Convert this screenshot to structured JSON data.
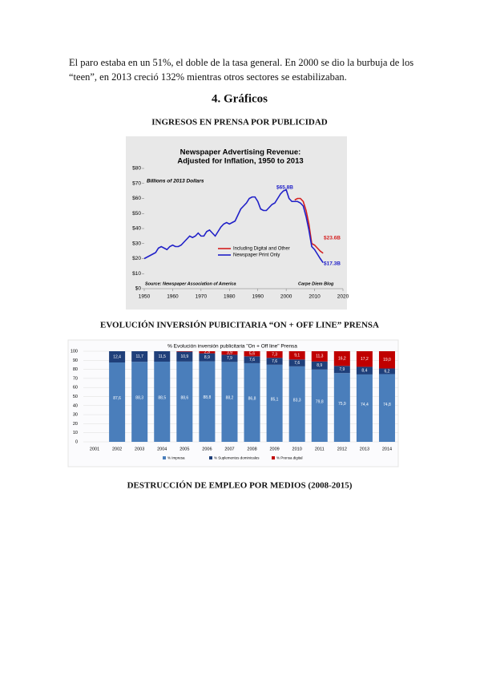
{
  "paragraph_lines": [
    "El paro estaba en un 51%, el doble de la tasa general. En 2000 se dio la burbuja de los",
    "“teen”, en 2013 creció 132% mientras otros sectores se estabilizaban."
  ],
  "heading": "4.  Gráficos",
  "figures": [
    {
      "caption": "INGRESOS EN PRENSA POR PUBLICIDAD",
      "chart": {
        "type": "line",
        "title": "Newspaper Advertising Revenue:",
        "title_line2": "Adjusted for Inflation, 1950 to 2013",
        "subtitle": "Billions of 2013 Dollars",
        "x": [
          1950,
          1951,
          1952,
          1953,
          1954,
          1955,
          1956,
          1957,
          1958,
          1959,
          1960,
          1961,
          1962,
          1963,
          1964,
          1965,
          1966,
          1967,
          1968,
          1969,
          1970,
          1971,
          1972,
          1973,
          1974,
          1975,
          1976,
          1977,
          1978,
          1979,
          1980,
          1981,
          1982,
          1983,
          1984,
          1985,
          1986,
          1987,
          1988,
          1989,
          1990,
          1991,
          1992,
          1993,
          1994,
          1995,
          1996,
          1997,
          1998,
          1999,
          2000,
          2001,
          2002,
          2003,
          2004,
          2005,
          2006,
          2007,
          2008,
          2009,
          2010,
          2011,
          2012,
          2013
        ],
        "series": [
          {
            "name": "Including Digital and Other",
            "color": "#d42020",
            "values": [
              null,
              null,
              null,
              null,
              null,
              null,
              null,
              null,
              null,
              null,
              null,
              null,
              null,
              null,
              null,
              null,
              null,
              null,
              null,
              null,
              null,
              null,
              null,
              null,
              null,
              null,
              null,
              null,
              null,
              null,
              null,
              null,
              null,
              null,
              null,
              null,
              null,
              null,
              null,
              null,
              null,
              null,
              null,
              null,
              null,
              null,
              null,
              null,
              null,
              null,
              null,
              null,
              null,
              59,
              60,
              60,
              58,
              52,
              43,
              30,
              29,
              27,
              25,
              23.6
            ]
          },
          {
            "name": "Newspaper Print Only",
            "color": "#2020c8",
            "values": [
              20,
              21,
              22,
              23,
              24,
              27,
              28,
              27,
              26,
              28,
              29,
              28,
              28,
              29,
              31,
              33,
              35,
              34,
              35,
              37,
              35,
              35,
              38,
              39,
              37,
              35,
              38,
              41,
              43,
              44,
              43,
              44,
              45,
              49,
              53,
              55,
              57,
              60,
              61,
              61,
              58,
              53,
              52,
              52,
              54,
              56,
              57,
              60,
              63,
              65,
              65.8,
              60,
              58,
              58,
              58,
              57,
              55,
              48,
              39,
              28,
              26,
              23,
              20,
              17.3
            ]
          }
        ],
        "annotations": [
          "$65.8B",
          "$23.6B",
          "$17.3B"
        ],
        "source": "Source: Newspaper Association of America",
        "credit": "Carpe Diem Blog",
        "xlim": [
          1950,
          2020
        ],
        "xticks": [
          1950,
          1960,
          1970,
          1980,
          1990,
          2000,
          2010,
          2020
        ],
        "ylim": [
          0,
          80
        ],
        "yticks": [
          {
            "value": 0,
            "label": "$0"
          },
          {
            "value": 10,
            "label": "$10"
          },
          {
            "value": 20,
            "label": "$20"
          },
          {
            "value": 30,
            "label": "$30"
          },
          {
            "value": 40,
            "label": "$40"
          },
          {
            "value": 50,
            "label": "$50"
          },
          {
            "value": 60,
            "label": "$60"
          },
          {
            "value": 70,
            "label": "$70"
          },
          {
            "value": 80,
            "label": "$80"
          }
        ]
      }
    },
    {
      "caption": "EVOLUCIÓN INVERSIÓN PUBICITARIA “ON + OFF LINE” PRENSA",
      "chart": {
        "type": "stacked-bar",
        "title": "% Evolución inversión publicitaria \"On + Off line\" Prensa",
        "categories": [
          "2001",
          "2002",
          "2003",
          "2004",
          "2005",
          "2006",
          "2007",
          "2008",
          "2009",
          "2010",
          "2011",
          "2012",
          "2013",
          "2014"
        ],
        "series": [
          {
            "name": "% Impresa",
            "color": "#4a7ebb",
            "values": [
              null,
              87.6,
              88.3,
              88.5,
              88.6,
              88.8,
              88.2,
              86.8,
              85.1,
              83.3,
              79.8,
              75.9,
              74.4,
              74.8
            ],
            "value_labels": [
              null,
              "87,6",
              "88,3",
              "88,5",
              "88,6",
              "88,8",
              "88,2",
              "86,8",
              "85,1",
              "83,3",
              "79,8",
              "75,9",
              "74,4",
              "74,8"
            ]
          },
          {
            "name": "% Suplementos dominicales",
            "color": "#1f3f7a",
            "values": [
              null,
              12.4,
              11.7,
              11.5,
              10.9,
              8.9,
              7.9,
              7.6,
              7.6,
              7.6,
              8.9,
              7.9,
              8.4,
              6.2
            ],
            "value_labels": [
              null,
              "12,4",
              "11,7",
              "11,5",
              "10,9",
              "8,9",
              "7,9",
              "7,6",
              "7,6",
              "7,6",
              "8,9",
              "7,9",
              "8,4",
              "6,2"
            ]
          },
          {
            "name": "% Prensa digital",
            "color": "#c00000",
            "values": [
              null,
              null,
              null,
              null,
              0.5,
              2.3,
              3.9,
              5.6,
              7.3,
              9.1,
              11.3,
              16.2,
              17.2,
              19.0
            ],
            "value_labels": [
              null,
              null,
              null,
              null,
              null,
              "2,3",
              "3,9",
              "5,6",
              "7,3",
              "9,1",
              "11,3",
              "16,2",
              "17,2",
              "19,0"
            ]
          }
        ],
        "ylim": [
          0,
          100
        ],
        "yticks": [
          0,
          10,
          20,
          30,
          40,
          50,
          60,
          70,
          80,
          90,
          100
        ],
        "grid": true
      }
    }
  ],
  "final_caption": "DESTRUCCIÓN DE EMPLEO POR MEDIOS (2008-2015)"
}
